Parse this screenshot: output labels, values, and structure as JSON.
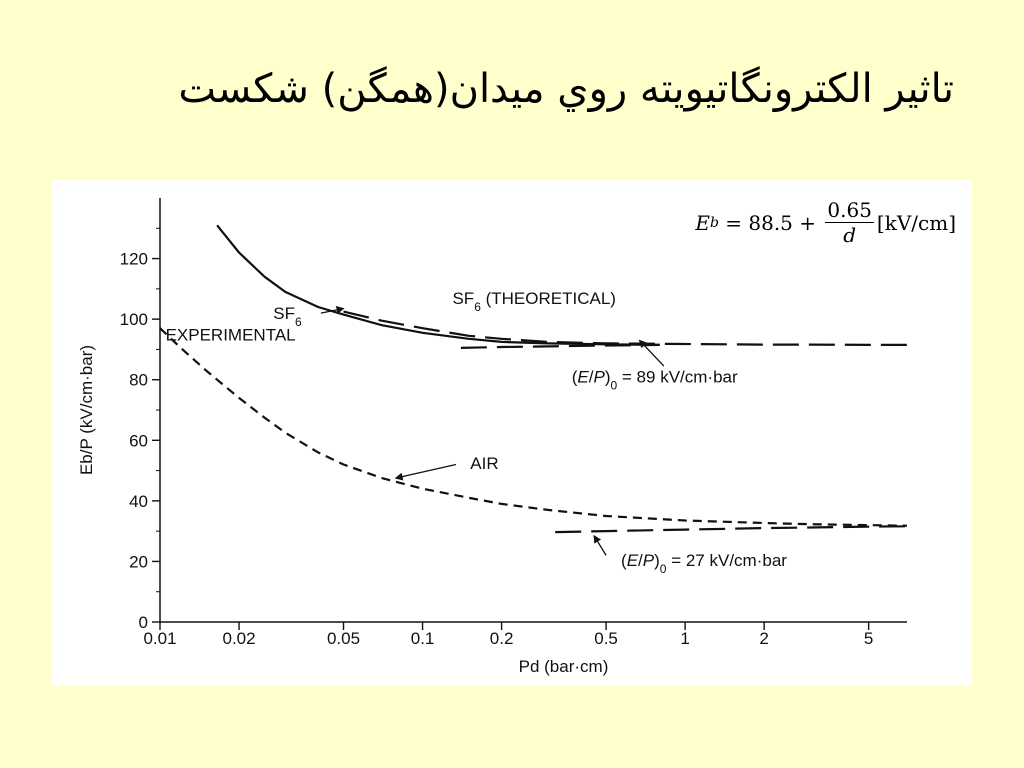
{
  "slide": {
    "title": "تاثير الكترونگاتيويته روي ميدان(همگن) شكست"
  },
  "formula": {
    "lhs": "E",
    "lhs_sub": "b",
    "eq": " = 88.5 + ",
    "numerator": "0.65",
    "denominator": "d",
    "unit": "[kV/cm]"
  },
  "chart_data": {
    "type": "line",
    "xscale": "log",
    "xlabel": "Pd (bar·cm)",
    "ylabel": "Eb/P (kV/cm·bar)",
    "xlim": [
      0.01,
      7
    ],
    "ylim": [
      0,
      140
    ],
    "xticks": [
      0.01,
      0.02,
      0.05,
      0.1,
      0.2,
      0.5,
      1,
      2,
      5
    ],
    "xtick_labels": [
      "0.01",
      "0.02",
      "0.05",
      "0.1",
      "0.2",
      "0.5",
      "1",
      "2",
      "5"
    ],
    "yticks": [
      0,
      20,
      40,
      60,
      80,
      100,
      120
    ],
    "ytick_labels": [
      "0",
      "20",
      "40",
      "60",
      "80",
      "100",
      "120"
    ],
    "grid": false,
    "series": [
      {
        "name": "SF6 EXPERIMENTAL",
        "style": "solid",
        "x": [
          0.0165,
          0.02,
          0.025,
          0.03,
          0.04,
          0.05,
          0.07,
          0.1,
          0.15,
          0.2,
          0.3,
          0.5,
          0.8
        ],
        "y": [
          131,
          122,
          114,
          109,
          104,
          101.5,
          98,
          95.5,
          93.5,
          92.5,
          92,
          91.7,
          91.5
        ]
      },
      {
        "name": "SF6 (THEORETICAL)",
        "style": "long-dash",
        "x": [
          0.05,
          0.07,
          0.1,
          0.15,
          0.2,
          0.3,
          0.5,
          1,
          2,
          3,
          5,
          7
        ],
        "y": [
          102.5,
          99.5,
          97,
          94.5,
          93.5,
          92.5,
          92,
          91.8,
          91.6,
          91.6,
          91.5,
          91.5
        ]
      },
      {
        "name": "SF6 asymptote",
        "style": "long-dash",
        "x": [
          0.14,
          0.2,
          0.3,
          0.5,
          0.8
        ],
        "y": [
          90.5,
          90.8,
          91,
          91.3,
          91.5
        ]
      },
      {
        "name": "AIR",
        "style": "short-dash",
        "x": [
          0.01,
          0.012,
          0.015,
          0.02,
          0.025,
          0.03,
          0.04,
          0.05,
          0.07,
          0.1,
          0.15,
          0.2,
          0.3,
          0.5,
          1,
          2,
          3,
          5,
          7
        ],
        "y": [
          97,
          90.5,
          83,
          74,
          67.5,
          62.5,
          56,
          52,
          47.5,
          44,
          41,
          39,
          37,
          35,
          33.5,
          32.7,
          32.3,
          32,
          31.8
        ]
      },
      {
        "name": "AIR asymptote",
        "style": "long-dash",
        "x": [
          0.32,
          0.5,
          1,
          2,
          3,
          5,
          7
        ],
        "y": [
          29.7,
          30,
          30.5,
          31,
          31.2,
          31.5,
          31.6
        ]
      }
    ],
    "annotations": [
      {
        "text": "SF",
        "sub": "6",
        "text2": " (THEORETICAL)",
        "at": [
          0.13,
          105
        ],
        "arrow": null
      },
      {
        "text": "SF",
        "sub": "6",
        "text2": "",
        "at": [
          0.027,
          100
        ],
        "arrow": {
          "from": [
            0.041,
            102
          ],
          "to": [
            0.05,
            103.5
          ]
        }
      },
      {
        "text": "EXPERIMENTAL",
        "sub": "",
        "text2": "",
        "at": [
          0.0105,
          93
        ],
        "arrow": null
      },
      {
        "text": "(",
        "sub": "",
        "text2": "",
        "rich": "eo89",
        "at": [
          0.37,
          79
        ],
        "arrow": {
          "from": [
            0.83,
            84.5
          ],
          "to": [
            0.67,
            93
          ]
        }
      },
      {
        "text": "AIR",
        "sub": "",
        "text2": "",
        "at": [
          0.152,
          50.5
        ],
        "arrow": {
          "from": [
            0.134,
            52
          ],
          "to": [
            0.079,
            47.5
          ]
        }
      },
      {
        "text": "(",
        "sub": "",
        "text2": "",
        "rich": "eo27",
        "at": [
          0.57,
          18.5
        ],
        "arrow": {
          "from": [
            0.5,
            22
          ],
          "to": [
            0.45,
            28.5
          ]
        }
      }
    ],
    "rich_labels": {
      "eo89": {
        "pre": "(",
        "E": "E",
        "slash": "/",
        "P": "P",
        "close": ")",
        "sub": "0",
        "rest": " = 89 kV/cm·bar"
      },
      "eo27": {
        "pre": "(",
        "E": "E",
        "slash": "/",
        "P": "P",
        "close": ")",
        "sub": "0",
        "rest": " = 27 kV/cm·bar"
      }
    }
  }
}
